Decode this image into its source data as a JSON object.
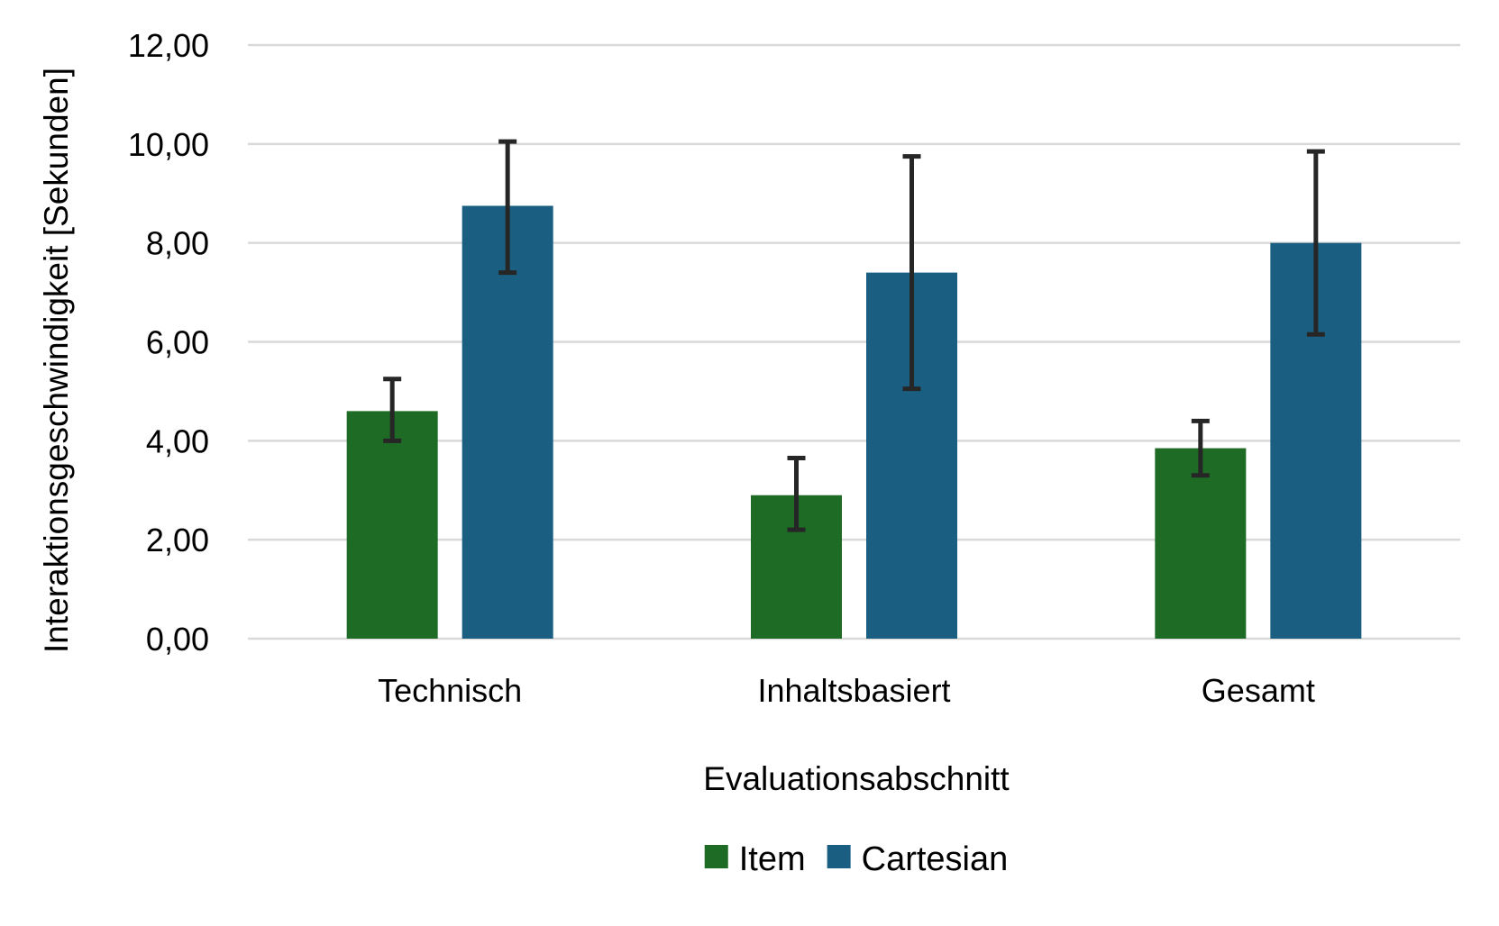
{
  "chart_data": {
    "type": "bar",
    "title": "",
    "xlabel": "Evaluationsabschnitt",
    "ylabel": "Interaktionsgeschwindigkeit [Sekunden]",
    "categories": [
      "Technisch",
      "Inhaltsbasiert",
      "Gesamt"
    ],
    "ylim": [
      0,
      12
    ],
    "yticks": [
      "0,00",
      "2,00",
      "4,00",
      "6,00",
      "8,00",
      "10,00",
      "12,00"
    ],
    "grid": true,
    "legend_position": "bottom-center",
    "series": [
      {
        "name": "Item",
        "color": "#1e6b25",
        "values": [
          4.6,
          2.9,
          3.85
        ],
        "error_low": [
          4.0,
          2.2,
          3.3
        ],
        "error_high": [
          5.25,
          3.65,
          4.4
        ]
      },
      {
        "name": "Cartesian",
        "color": "#1a5f82",
        "values": [
          8.75,
          7.4,
          8.0
        ],
        "error_low": [
          7.4,
          5.05,
          6.15
        ],
        "error_high": [
          10.05,
          9.75,
          9.85
        ]
      }
    ]
  }
}
